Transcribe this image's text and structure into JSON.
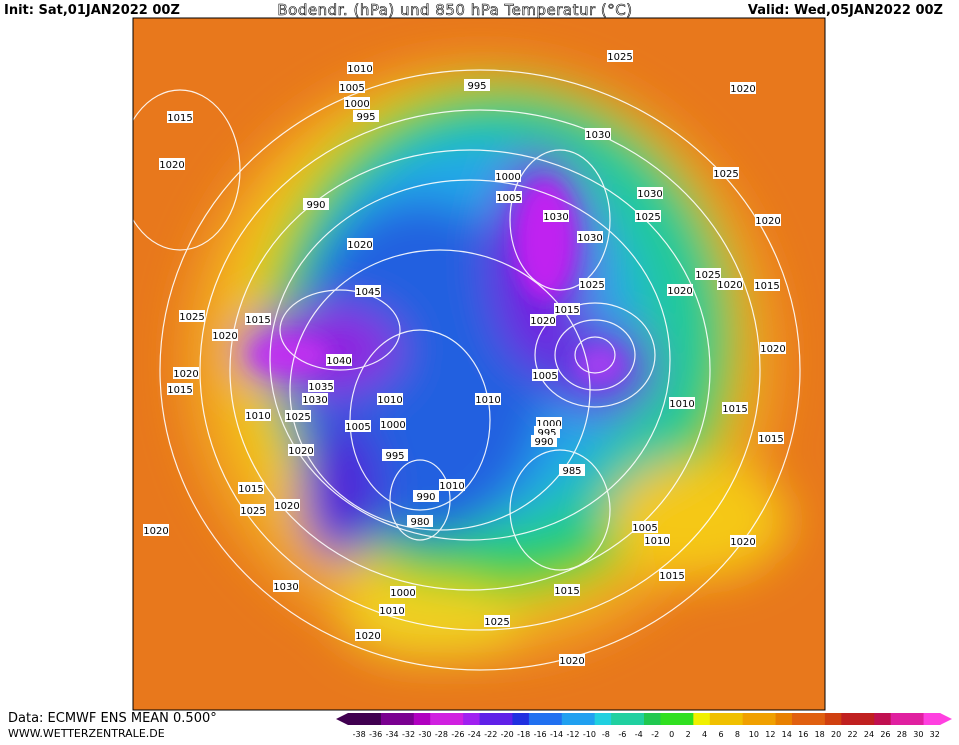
{
  "header": {
    "init": "Init: Sat,01JAN2022 00Z",
    "title": "Bodendr. (hPa) und 850 hPa Temperatur (°C)",
    "valid": "Valid: Wed,05JAN2022 00Z"
  },
  "footer": {
    "source": "Data: ECMWF ENS MEAN 0.500°",
    "website": "WWW.WETTERZENTRALE.DE"
  },
  "pressure_labels": [
    1010,
    1005,
    1000,
    995,
    995,
    1025,
    1020,
    1015,
    1020,
    1030,
    1000,
    1005,
    1030,
    1025,
    1025,
    1020,
    990,
    1030,
    1030,
    1020,
    1045,
    1025,
    1020,
    1020,
    1015,
    1025,
    1015,
    1020,
    1025,
    1015,
    1020,
    1020,
    1040,
    1020,
    1015,
    1035,
    1030,
    1005,
    1010,
    1010,
    1010,
    1015,
    1010,
    1025,
    1005,
    1000,
    1000,
    995,
    990,
    1015,
    1020,
    995,
    985,
    1010,
    1015,
    990,
    1020,
    1025,
    980,
    1005,
    1020,
    1010,
    1020,
    1030,
    1015,
    1000,
    1015,
    1010,
    1025,
    1020,
    1020
  ],
  "color_scale": {
    "ticks": [
      -38,
      -36,
      -34,
      -32,
      -30,
      -28,
      -26,
      -24,
      -22,
      -20,
      -18,
      -16,
      -14,
      -12,
      -10,
      -8,
      -6,
      -4,
      -2,
      0,
      2,
      4,
      6,
      8,
      10,
      12,
      14,
      16,
      18,
      20,
      22,
      24,
      26,
      28,
      30,
      32
    ]
  }
}
